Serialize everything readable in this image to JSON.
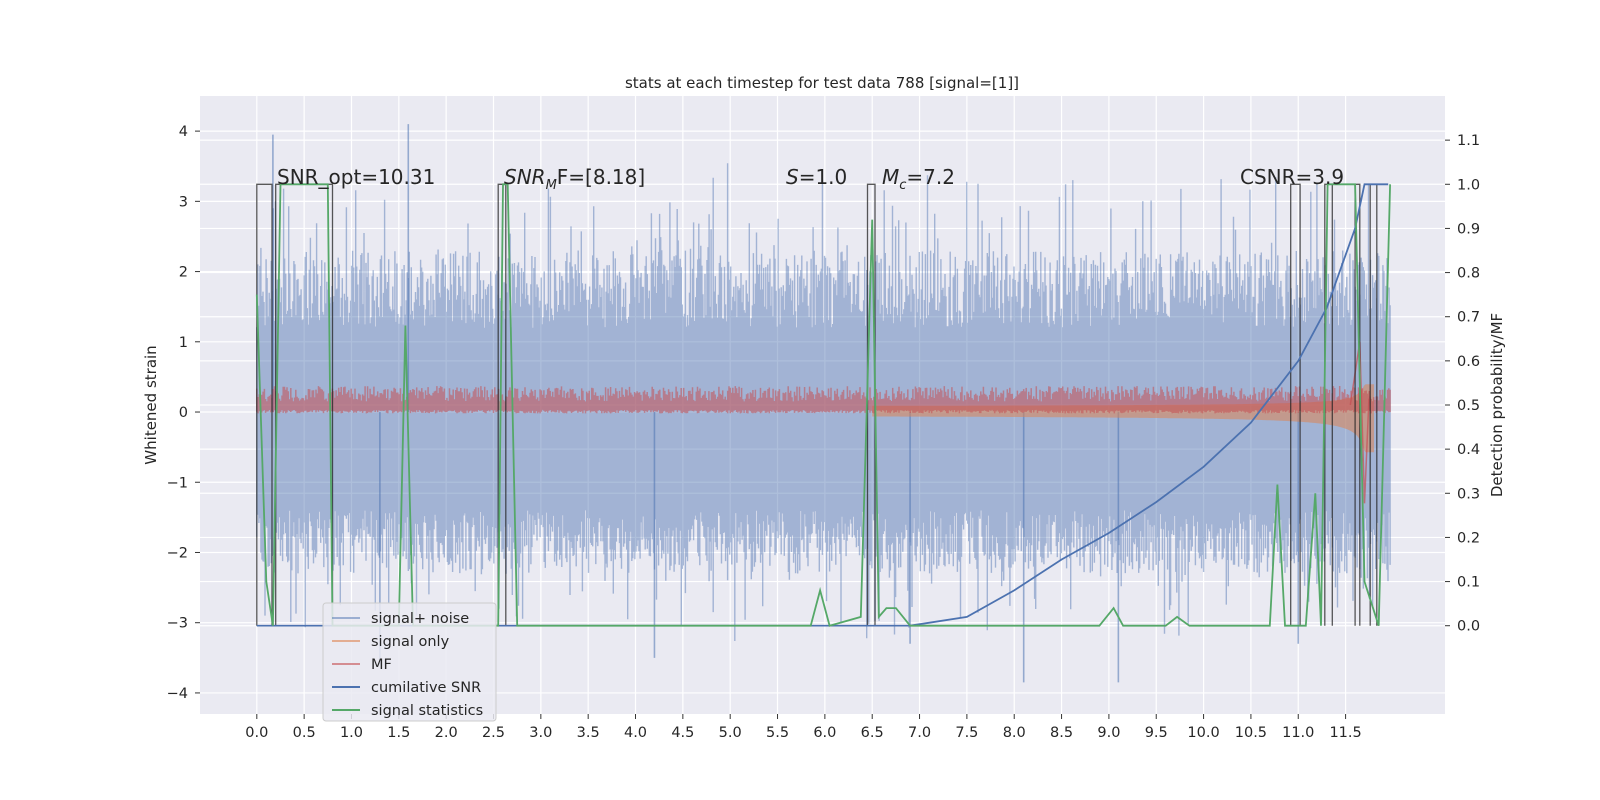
{
  "chart_data": {
    "type": "line",
    "title": "stats at each timestep for test data 788 [signal=[1]]",
    "ylabel": "Whitened strain",
    "ylabel_right": "Detection probability/MF",
    "xlim": [
      -0.6,
      12.55
    ],
    "ylim": [
      -4.3,
      4.5
    ],
    "ylim_right": [
      -0.2,
      1.2
    ],
    "x_ticks": [
      "0.0",
      "0.5",
      "1.0",
      "1.5",
      "2.0",
      "2.5",
      "3.0",
      "3.5",
      "4.0",
      "4.5",
      "5.0",
      "5.5",
      "6.0",
      "6.5",
      "7.0",
      "7.5",
      "8.0",
      "8.5",
      "9.0",
      "9.5",
      "10.0",
      "10.5",
      "11.0",
      "11.5"
    ],
    "y_ticks": [
      "4",
      "3",
      "2",
      "1",
      "0",
      "−1",
      "−2",
      "−3",
      "−4"
    ],
    "y_ticks_right": [
      "1.1",
      "1.0",
      "0.9",
      "0.8",
      "0.7",
      "0.6",
      "0.5",
      "0.4",
      "0.3",
      "0.2",
      "0.1",
      "0.0"
    ],
    "grid": true,
    "legend_position": "lower-left",
    "annotations": {
      "snr_opt": "SNR_opt=10.31",
      "snr_mf_sym": "SNR",
      "snr_mf_sub": "M",
      "snr_mf_rest": "F=[8.18]",
      "s_sym": "S",
      "s_rest": "=1.0",
      "mc_sym": "M",
      "mc_sub": "c",
      "mc_rest": "=7.2",
      "csnr": "CSNR=3.9"
    },
    "series": [
      {
        "name": "signal+ noise",
        "color": "#4c72b0",
        "note_range": [
          -2.4,
          2.1
        ],
        "peaks": [
          [
            0.17,
            3.95
          ],
          [
            1.6,
            4.1
          ],
          [
            6.9,
            -3.3
          ],
          [
            8.1,
            -3.85
          ],
          [
            9.1,
            -3.85
          ],
          [
            11.0,
            -3.3
          ],
          [
            4.2,
            -3.5
          ],
          [
            1.3,
            -3.6
          ]
        ]
      },
      {
        "name": "signal only",
        "color": "#dd8452"
      },
      {
        "name": "MF",
        "color": "#c44e52"
      },
      {
        "name": "cumilative SNR",
        "color": "#4c72b0",
        "x": [
          6.9,
          7.5,
          8.0,
          8.5,
          9.0,
          9.5,
          10.0,
          10.5,
          11.0,
          11.3,
          11.6,
          11.7,
          11.8,
          11.95
        ],
        "y": [
          0.0,
          0.02,
          0.08,
          0.15,
          0.21,
          0.28,
          0.36,
          0.46,
          0.6,
          0.72,
          0.9,
          1.0,
          1.0,
          1.0
        ]
      },
      {
        "name": "signal statistics",
        "color": "#55a868",
        "x": [
          0.0,
          0.1,
          0.17,
          0.25,
          0.75,
          0.8,
          1.5,
          1.57,
          1.65,
          2.55,
          2.6,
          2.65,
          2.75,
          5.85,
          5.95,
          6.05,
          6.38,
          6.5,
          6.57,
          6.65,
          6.75,
          6.9,
          7.0,
          8.9,
          9.05,
          9.15,
          9.6,
          9.72,
          9.85,
          10.7,
          10.78,
          10.86,
          11.08,
          11.18,
          11.24,
          11.31,
          11.37,
          11.43,
          11.6,
          11.7,
          11.85,
          11.97
        ],
        "y": [
          0.75,
          0.1,
          0.0,
          1.0,
          1.0,
          0.0,
          0.0,
          0.68,
          0.0,
          0.0,
          1.0,
          1.0,
          0.0,
          0.0,
          0.08,
          0.0,
          0.02,
          0.92,
          0.02,
          0.04,
          0.04,
          0.0,
          0.0,
          0.0,
          0.04,
          0.0,
          0.0,
          0.02,
          0.0,
          0.0,
          0.32,
          0.0,
          0.0,
          0.3,
          0.0,
          1.0,
          1.0,
          1.0,
          1.0,
          0.1,
          0.0,
          1.0
        ]
      }
    ],
    "detection_windows": [
      [
        0.0,
        0.16
      ],
      [
        0.2,
        0.8
      ],
      [
        2.55,
        2.63
      ],
      [
        6.45,
        6.53
      ],
      [
        10.92,
        11.02
      ],
      [
        11.28,
        11.36
      ],
      [
        11.6,
        11.65
      ],
      [
        11.76,
        11.83
      ]
    ]
  }
}
